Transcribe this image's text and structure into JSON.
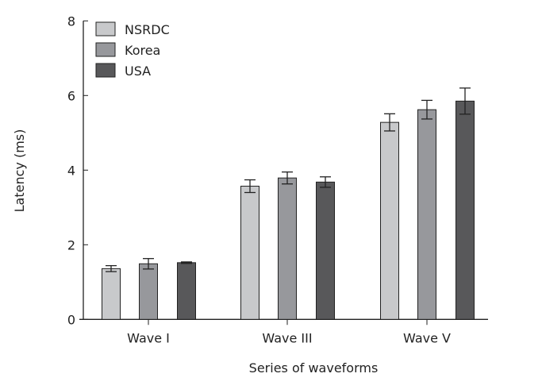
{
  "chart_data": {
    "type": "bar",
    "title": "",
    "xlabel": "Series of waveforms",
    "ylabel": "Latency (ms)",
    "ylim": [
      0,
      8
    ],
    "yticks": [
      0,
      2,
      4,
      6,
      8
    ],
    "grid": false,
    "legend_position": "top-left",
    "categories": [
      "Wave I",
      "Wave III",
      "Wave V"
    ],
    "series": [
      {
        "name": "NSRDC",
        "color": "#c8c9cb",
        "values": [
          1.36,
          3.57,
          5.28
        ],
        "errors": [
          0.08,
          0.17,
          0.23
        ]
      },
      {
        "name": "Korea",
        "color": "#97989c",
        "values": [
          1.49,
          3.79,
          5.62
        ],
        "errors": [
          0.14,
          0.16,
          0.25
        ]
      },
      {
        "name": "USA",
        "color": "#58585a",
        "values": [
          1.52,
          3.68,
          5.85
        ],
        "errors": [
          0.02,
          0.14,
          0.35
        ]
      }
    ]
  }
}
